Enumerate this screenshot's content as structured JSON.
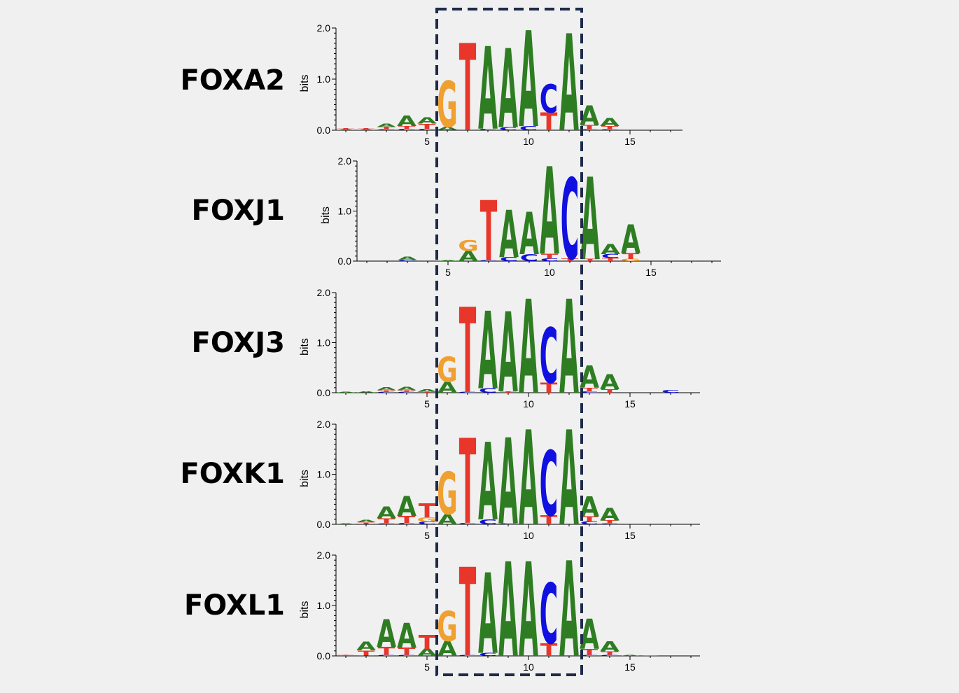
{
  "colors": {
    "A": "#2e7d22",
    "C": "#1010e0",
    "G": "#f0a030",
    "T": "#e8362a",
    "highlight_box": "#1e2a4a",
    "axis": "#000000"
  },
  "axis_ylabel": "bits",
  "y_ticks": [
    "0.0",
    "1.0",
    "2.0"
  ],
  "x_ticks": [
    "5",
    "10",
    "15"
  ],
  "motifs": [
    {
      "name": "FOXA2",
      "columns": [
        [
          [
            "A",
            0.02
          ],
          [
            "T",
            0.02
          ]
        ],
        [
          [
            "A",
            0.02
          ],
          [
            "T",
            0.02
          ]
        ],
        [
          [
            "C",
            0.02
          ],
          [
            "T",
            0.04
          ],
          [
            "A",
            0.07
          ]
        ],
        [
          [
            "C",
            0.03
          ],
          [
            "T",
            0.05
          ],
          [
            "A",
            0.2
          ]
        ],
        [
          [
            "C",
            0.03
          ],
          [
            "T",
            0.1
          ],
          [
            "A",
            0.12
          ]
        ],
        [
          [
            "C",
            0.01
          ],
          [
            "A",
            0.06
          ],
          [
            "G",
            0.9
          ]
        ],
        [
          [
            "C",
            0.01
          ],
          [
            "T",
            1.7
          ]
        ],
        [
          [
            "C",
            0.03
          ],
          [
            "A",
            1.62
          ]
        ],
        [
          [
            "C",
            0.06
          ],
          [
            "A",
            1.55
          ]
        ],
        [
          [
            "C",
            0.08
          ],
          [
            "A",
            1.88
          ]
        ],
        [
          [
            "T",
            0.35
          ],
          [
            "C",
            0.55
          ]
        ],
        [
          [
            "A",
            1.9
          ]
        ],
        [
          [
            "C",
            0.02
          ],
          [
            "T",
            0.08
          ],
          [
            "A",
            0.38
          ]
        ],
        [
          [
            "C",
            0.02
          ],
          [
            "T",
            0.06
          ],
          [
            "A",
            0.16
          ]
        ]
      ]
    },
    {
      "name": "FOXJ1",
      "columns": [
        [],
        [],
        [
          [
            "C",
            0.02
          ],
          [
            "A",
            0.07
          ]
        ],
        [],
        [
          [
            "A",
            0.02
          ]
        ],
        [
          [
            "A",
            0.2
          ],
          [
            "G",
            0.22
          ]
        ],
        [
          [
            "C",
            0.02
          ],
          [
            "T",
            1.2
          ]
        ],
        [
          [
            "C",
            0.08
          ],
          [
            "A",
            0.95
          ]
        ],
        [
          [
            "C",
            0.14
          ],
          [
            "A",
            0.85
          ]
        ],
        [
          [
            "C",
            0.05
          ],
          [
            "T",
            0.1
          ],
          [
            "A",
            1.75
          ]
        ],
        [
          [
            "T",
            0.05
          ],
          [
            "C",
            1.62
          ]
        ],
        [
          [
            "T",
            0.04
          ],
          [
            "A",
            1.65
          ]
        ],
        [
          [
            "T",
            0.06
          ],
          [
            "C",
            0.08
          ],
          [
            "A",
            0.2
          ]
        ],
        [
          [
            "G",
            0.04
          ],
          [
            "T",
            0.12
          ],
          [
            "A",
            0.57
          ]
        ]
      ]
    },
    {
      "name": "FOXJ3",
      "columns": [
        [
          [
            "A",
            0.02
          ]
        ],
        [
          [
            "A",
            0.03
          ]
        ],
        [
          [
            "C",
            0.02
          ],
          [
            "T",
            0.03
          ],
          [
            "A",
            0.06
          ]
        ],
        [
          [
            "C",
            0.02
          ],
          [
            "T",
            0.03
          ],
          [
            "A",
            0.07
          ]
        ],
        [
          [
            "T",
            0.02
          ],
          [
            "A",
            0.04
          ]
        ],
        [
          [
            "A",
            0.22
          ],
          [
            "G",
            0.5
          ]
        ],
        [
          [
            "C",
            0.02
          ],
          [
            "T",
            1.7
          ]
        ],
        [
          [
            "C",
            0.09
          ],
          [
            "A",
            1.55
          ]
        ],
        [
          [
            "T",
            0.03
          ],
          [
            "A",
            1.6
          ]
        ],
        [
          [
            "A",
            1.88
          ]
        ],
        [
          [
            "T",
            0.2
          ],
          [
            "C",
            1.1
          ]
        ],
        [
          [
            "A",
            1.88
          ]
        ],
        [
          [
            "C",
            0.03
          ],
          [
            "T",
            0.07
          ],
          [
            "A",
            0.45
          ]
        ],
        [
          [
            "T",
            0.07
          ],
          [
            "A",
            0.3
          ]
        ],
        [],
        [],
        [
          [
            "C",
            0.05
          ]
        ]
      ]
    },
    {
      "name": "FOXK1",
      "columns": [
        [
          [
            "A",
            0.02
          ]
        ],
        [
          [
            "C",
            0.01
          ],
          [
            "T",
            0.03
          ],
          [
            "A",
            0.04
          ]
        ],
        [
          [
            "C",
            0.02
          ],
          [
            "T",
            0.1
          ],
          [
            "A",
            0.24
          ]
        ],
        [
          [
            "C",
            0.03
          ],
          [
            "T",
            0.14
          ],
          [
            "A",
            0.4
          ]
        ],
        [
          [
            "C",
            0.05
          ],
          [
            "G",
            0.09
          ],
          [
            "T",
            0.28
          ]
        ],
        [
          [
            "A",
            0.2
          ],
          [
            "G",
            0.85
          ]
        ],
        [
          [
            "C",
            0.03
          ],
          [
            "T",
            1.7
          ]
        ],
        [
          [
            "C",
            0.1
          ],
          [
            "A",
            1.55
          ]
        ],
        [
          [
            "C",
            0.02
          ],
          [
            "A",
            1.72
          ]
        ],
        [
          [
            "A",
            1.9
          ]
        ],
        [
          [
            "T",
            0.18
          ],
          [
            "C",
            1.3
          ]
        ],
        [
          [
            "A",
            1.9
          ]
        ],
        [
          [
            "C",
            0.06
          ],
          [
            "T",
            0.1
          ],
          [
            "A",
            0.4
          ]
        ],
        [
          [
            "C",
            0.02
          ],
          [
            "T",
            0.06
          ],
          [
            "A",
            0.25
          ]
        ]
      ]
    },
    {
      "name": "FOXL1",
      "columns": [
        [
          [
            "T",
            0.02
          ]
        ],
        [
          [
            "C",
            0.01
          ],
          [
            "T",
            0.1
          ],
          [
            "A",
            0.17
          ]
        ],
        [
          [
            "C",
            0.02
          ],
          [
            "T",
            0.16
          ],
          [
            "A",
            0.55
          ]
        ],
        [
          [
            "C",
            0.02
          ],
          [
            "T",
            0.14
          ],
          [
            "A",
            0.5
          ]
        ],
        [
          [
            "A",
            0.14
          ],
          [
            "T",
            0.28
          ]
        ],
        [
          [
            "A",
            0.3
          ],
          [
            "G",
            0.6
          ]
        ],
        [
          [
            "C",
            0.02
          ],
          [
            "T",
            1.75
          ]
        ],
        [
          [
            "C",
            0.06
          ],
          [
            "A",
            1.6
          ]
        ],
        [
          [
            "A",
            1.88
          ]
        ],
        [
          [
            "A",
            1.88
          ]
        ],
        [
          [
            "T",
            0.25
          ],
          [
            "C",
            1.2
          ]
        ],
        [
          [
            "A",
            1.9
          ]
        ],
        [
          [
            "C",
            0.02
          ],
          [
            "T",
            0.12
          ],
          [
            "A",
            0.6
          ]
        ],
        [
          [
            "C",
            0.02
          ],
          [
            "T",
            0.07
          ],
          [
            "A",
            0.2
          ]
        ],
        [
          [
            "A",
            0.02
          ]
        ],
        [
          [
            "A",
            0.01
          ]
        ]
      ]
    }
  ]
}
